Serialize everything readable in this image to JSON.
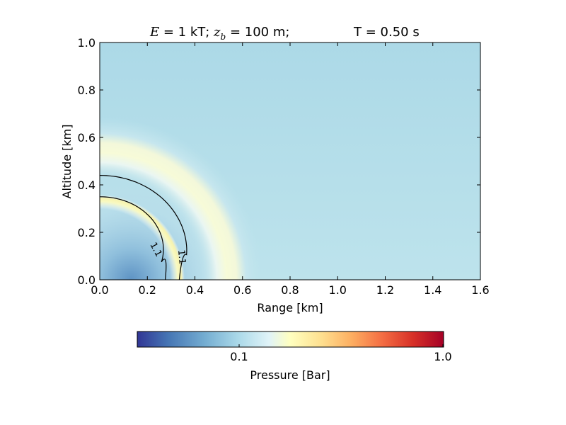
{
  "chart_data": {
    "type": "heatmap",
    "title": {
      "energy_symbol": "E",
      "energy_text": " = 1 kT; ",
      "height_symbol": "z",
      "height_subscript": "b",
      "height_text": " = 100 m;",
      "time_text": "T =  0.50 s"
    },
    "xlabel": "Range [km]",
    "ylabel": "Altitude [km]",
    "xlim": [
      0.0,
      1.6
    ],
    "ylim": [
      0.0,
      1.0
    ],
    "x_ticks": [
      "0.0",
      "0.2",
      "0.4",
      "0.6",
      "0.8",
      "1.0",
      "1.2",
      "1.4",
      "1.6"
    ],
    "y_ticks": [
      "0.0",
      "0.2",
      "0.4",
      "0.6",
      "0.8",
      "1.0"
    ],
    "contours": [
      {
        "level": 1.1,
        "label": "1.1",
        "inner_radius_km": 0.38,
        "outer_radius_km": 0.44
      },
      {
        "level": 1.1,
        "label": "1.1",
        "inner_radius_km": 0.27,
        "outer_radius_km": 0.35
      }
    ],
    "shock_front_radius_km": 0.32,
    "background_pressure_color": "#acd9e9",
    "colorbar": {
      "label": "Pressure [Bar]",
      "tick_labels": [
        "0.1",
        "1.0"
      ],
      "scale": "log",
      "colormap": "RdYlBu_r",
      "colors": [
        "#313695",
        "#4575b4",
        "#74add1",
        "#abd9e9",
        "#e0f3f8",
        "#ffffbf",
        "#fee090",
        "#fdae61",
        "#f46d43",
        "#d73027",
        "#a50026"
      ]
    }
  }
}
